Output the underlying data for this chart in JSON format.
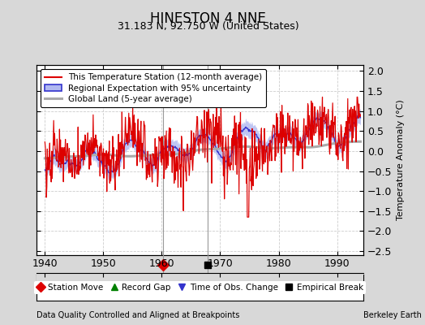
{
  "title": "HINESTON 4 NNE",
  "subtitle": "31.183 N, 92.750 W (United States)",
  "ylabel": "Temperature Anomaly (°C)",
  "xlabel_note": "Data Quality Controlled and Aligned at Breakpoints",
  "source_note": "Berkeley Earth",
  "xlim": [
    1938.5,
    1994.5
  ],
  "ylim": [
    -2.6,
    2.15
  ],
  "yticks": [
    -2.5,
    -2.0,
    -1.5,
    -1.0,
    -0.5,
    0.0,
    0.5,
    1.0,
    1.5,
    2.0
  ],
  "xticks": [
    1940,
    1950,
    1960,
    1970,
    1980,
    1990
  ],
  "bg_color": "#d8d8d8",
  "plot_bg_color": "#ffffff",
  "grid_color": "#cccccc",
  "station_move_x": 1960.2,
  "empirical_break_x": 1967.8,
  "marker_y": -2.05,
  "vline_color": "#999999",
  "uncertainty_color": "#b0b8f0",
  "regional_color": "#3333cc",
  "station_color": "#dd0000",
  "global_color": "#aaaaaa",
  "legend_fontsize": 7.5,
  "tick_fontsize": 9,
  "title_fontsize": 12,
  "subtitle_fontsize": 9
}
